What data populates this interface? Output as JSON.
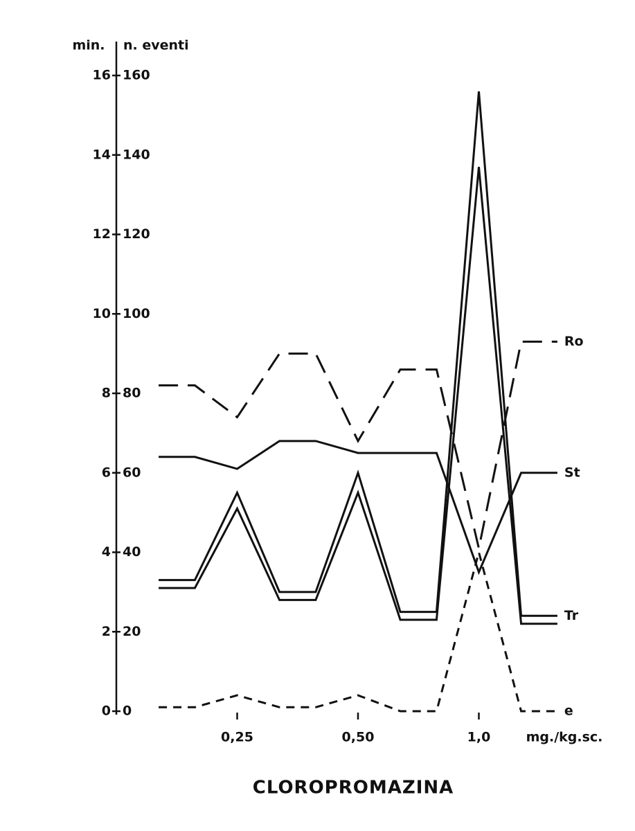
{
  "chart_data": {
    "type": "line",
    "title": "CLOROPROMAZINA",
    "y_label": "min.",
    "y2_label": "n. eventi",
    "x_label": "mg./kg.sc.",
    "x": [
      0.35,
      0.65,
      1,
      1.35,
      1.65,
      2,
      2.35,
      2.65,
      3,
      3.35,
      3.65
    ],
    "xlim": [
      0,
      4
    ],
    "xticks": [
      {
        "value": 1,
        "label": "0,25"
      },
      {
        "value": 2,
        "label": "0,50"
      },
      {
        "value": 3,
        "label": "1,0"
      }
    ],
    "ylim": [
      0,
      16
    ],
    "yticks": [
      0,
      2,
      4,
      6,
      8,
      10,
      12,
      14,
      16
    ],
    "y2lim": [
      0,
      160
    ],
    "y2ticks": [
      0,
      20,
      40,
      60,
      80,
      100,
      120,
      140,
      160
    ],
    "series": [
      {
        "name": "Ro",
        "color": "#111111",
        "dash": "long",
        "values": [
          8.2,
          8.2,
          7.4,
          9.0,
          9.0,
          6.8,
          8.6,
          8.6,
          4.1,
          9.3,
          9.3
        ]
      },
      {
        "name": "St",
        "color": "#111111",
        "dash": "solid",
        "values": [
          6.4,
          6.4,
          6.1,
          6.8,
          6.8,
          6.5,
          6.5,
          6.5,
          3.5,
          6.0,
          6.0
        ]
      },
      {
        "name": "Tr",
        "color": "#111111",
        "dash": "solid",
        "values": [
          3.3,
          3.3,
          5.5,
          3.0,
          3.0,
          6.0,
          2.5,
          2.5,
          15.6,
          2.4,
          2.4
        ]
      },
      {
        "color": "#111111",
        "dash": "solid",
        "values": [
          3.1,
          3.1,
          5.1,
          2.8,
          2.8,
          5.5,
          2.3,
          2.3,
          13.7,
          2.2,
          2.2
        ]
      },
      {
        "name": "e",
        "color": "#111111",
        "dash": "short",
        "values": [
          0.1,
          0.1,
          0.4,
          0.1,
          0.1,
          0.4,
          0,
          0,
          4.0,
          0,
          0
        ]
      }
    ]
  }
}
